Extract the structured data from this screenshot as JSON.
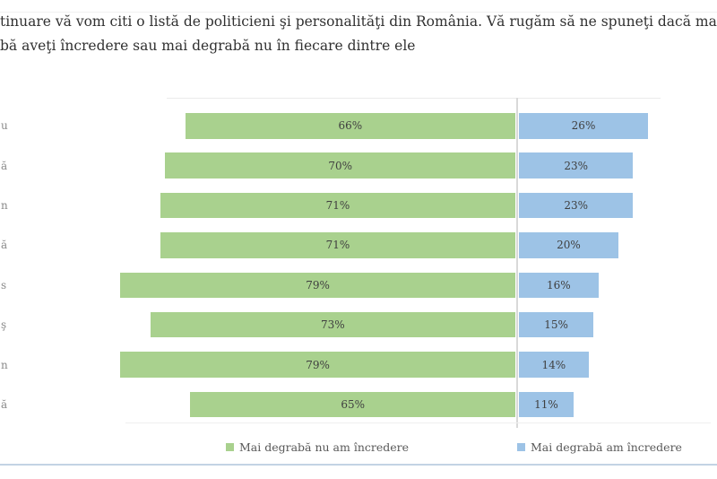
{
  "page": {
    "title_line1": "tinuare vă vom citi o listă de politicieni şi personalităţi din România. Vă rugăm să ne spuneţi dacă mai",
    "title_line2": "bă aveţi încredere sau mai degrabă nu în fiecare dintre ele"
  },
  "chart_data": {
    "type": "bar",
    "orientation": "horizontal-diverging",
    "title": "",
    "categories": [
      "u",
      "ă",
      "n",
      "ă",
      "s",
      "ş",
      "n",
      "ă"
    ],
    "categories_note": "row labels are truncated by the left crop of the screenshot; only final letters are visible",
    "series": [
      {
        "name": "Mai degrabă nu am încredere",
        "side": "left",
        "color": "#a9d18e",
        "values": [
          66,
          70,
          71,
          71,
          79,
          73,
          79,
          65
        ]
      },
      {
        "name": "Mai degrabă am încredere",
        "side": "right",
        "color": "#9dc3e6",
        "values": [
          26,
          23,
          23,
          20,
          16,
          15,
          14,
          11
        ]
      }
    ],
    "value_suffix": "%",
    "xlabel": "",
    "ylabel": "",
    "grid": false,
    "legend_position": "bottom",
    "divider_color": "#d9d9d9",
    "value_label_color": "#404040"
  }
}
